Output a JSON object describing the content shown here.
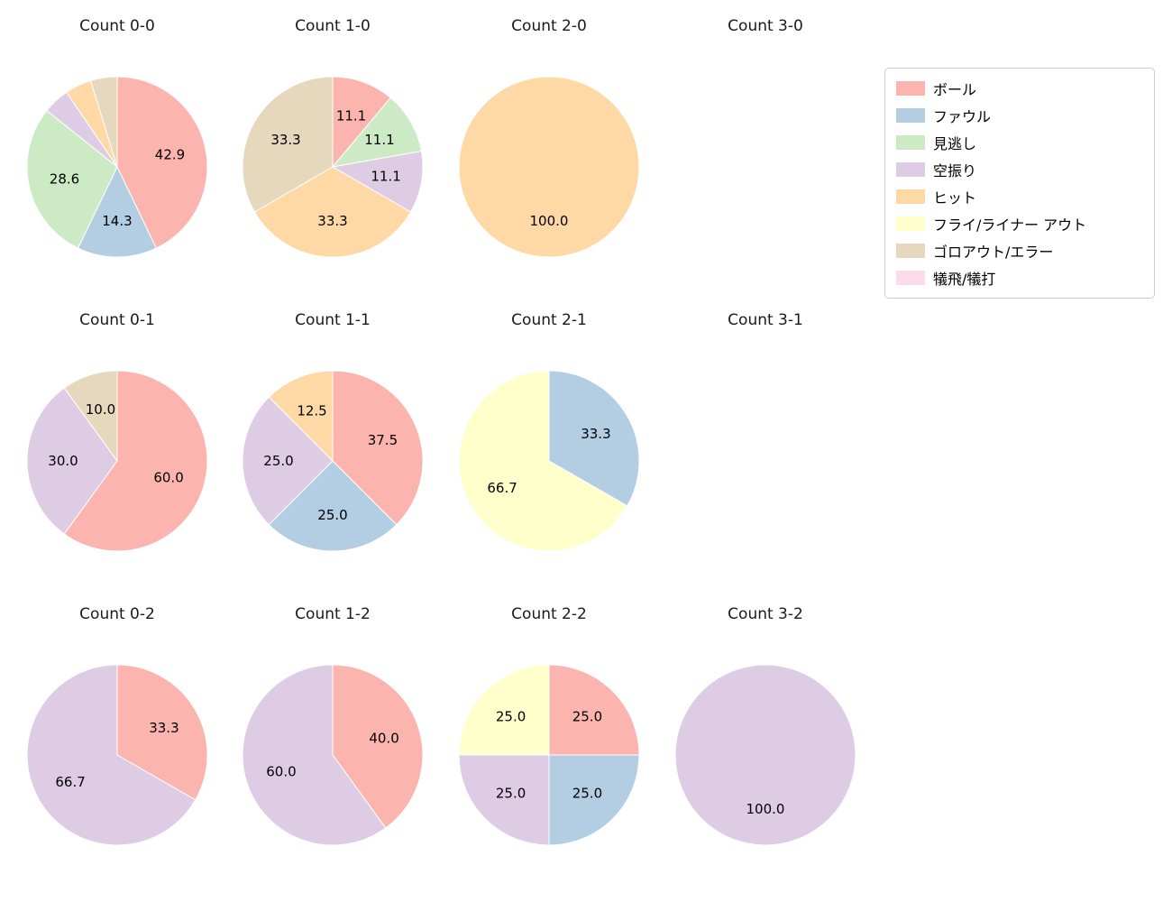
{
  "page": {
    "background": "#ffffff"
  },
  "legend": {
    "entries": [
      {
        "label": "ボール",
        "color": "#fbb4ae"
      },
      {
        "label": "ファウル",
        "color": "#b3cde3"
      },
      {
        "label": "見逃し",
        "color": "#ccebc5"
      },
      {
        "label": "空振り",
        "color": "#decbe4"
      },
      {
        "label": "ヒット",
        "color": "#fed9a6"
      },
      {
        "label": "フライ/ライナー アウト",
        "color": "#ffffcc"
      },
      {
        "label": "ゴロアウト/エラー",
        "color": "#e5d8bd"
      },
      {
        "label": "犠飛/犠打",
        "color": "#fddaec"
      }
    ]
  },
  "chart_data": [
    {
      "type": "pie",
      "title": "Count 0-0",
      "unit": "percent",
      "slices": [
        {
          "category": "ボール",
          "value": 42.9,
          "label": "42.9"
        },
        {
          "category": "ファウル",
          "value": 14.3,
          "label": "14.3"
        },
        {
          "category": "見逃し",
          "value": 28.6,
          "label": "28.6"
        },
        {
          "category": "空振り",
          "value": 4.76,
          "label": ""
        },
        {
          "category": "ヒット",
          "value": 4.76,
          "label": ""
        },
        {
          "category": "ゴロアウト/エラー",
          "value": 4.76,
          "label": ""
        }
      ]
    },
    {
      "type": "pie",
      "title": "Count 1-0",
      "unit": "percent",
      "slices": [
        {
          "category": "ボール",
          "value": 11.1,
          "label": "11.1"
        },
        {
          "category": "見逃し",
          "value": 11.1,
          "label": "11.1"
        },
        {
          "category": "空振り",
          "value": 11.1,
          "label": "11.1"
        },
        {
          "category": "ヒット",
          "value": 33.3,
          "label": "33.3"
        },
        {
          "category": "ゴロアウト/エラー",
          "value": 33.3,
          "label": "33.3"
        }
      ]
    },
    {
      "type": "pie",
      "title": "Count 2-0",
      "unit": "percent",
      "slices": [
        {
          "category": "ヒット",
          "value": 100.0,
          "label": "100.0"
        }
      ]
    },
    {
      "type": "pie",
      "title": "Count 3-0",
      "unit": "percent",
      "slices": []
    },
    {
      "type": "pie",
      "title": "Count 0-1",
      "unit": "percent",
      "slices": [
        {
          "category": "ボール",
          "value": 60.0,
          "label": "60.0"
        },
        {
          "category": "空振り",
          "value": 30.0,
          "label": "30.0"
        },
        {
          "category": "ゴロアウト/エラー",
          "value": 10.0,
          "label": "10.0"
        }
      ]
    },
    {
      "type": "pie",
      "title": "Count 1-1",
      "unit": "percent",
      "slices": [
        {
          "category": "ボール",
          "value": 37.5,
          "label": "37.5"
        },
        {
          "category": "ファウル",
          "value": 25.0,
          "label": "25.0"
        },
        {
          "category": "空振り",
          "value": 25.0,
          "label": "25.0"
        },
        {
          "category": "ヒット",
          "value": 12.5,
          "label": "12.5"
        }
      ]
    },
    {
      "type": "pie",
      "title": "Count 2-1",
      "unit": "percent",
      "slices": [
        {
          "category": "ファウル",
          "value": 33.3,
          "label": "33.3"
        },
        {
          "category": "フライ/ライナー アウト",
          "value": 66.7,
          "label": "66.7"
        }
      ]
    },
    {
      "type": "pie",
      "title": "Count 3-1",
      "unit": "percent",
      "slices": []
    },
    {
      "type": "pie",
      "title": "Count 0-2",
      "unit": "percent",
      "slices": [
        {
          "category": "ボール",
          "value": 33.3,
          "label": "33.3"
        },
        {
          "category": "空振り",
          "value": 66.7,
          "label": "66.7"
        }
      ]
    },
    {
      "type": "pie",
      "title": "Count 1-2",
      "unit": "percent",
      "slices": [
        {
          "category": "ボール",
          "value": 40.0,
          "label": "40.0"
        },
        {
          "category": "空振り",
          "value": 60.0,
          "label": "60.0"
        }
      ]
    },
    {
      "type": "pie",
      "title": "Count 2-2",
      "unit": "percent",
      "slices": [
        {
          "category": "ボール",
          "value": 25.0,
          "label": "25.0"
        },
        {
          "category": "ファウル",
          "value": 25.0,
          "label": "25.0"
        },
        {
          "category": "空振り",
          "value": 25.0,
          "label": "25.0"
        },
        {
          "category": "フライ/ライナー アウト",
          "value": 25.0,
          "label": "25.0"
        }
      ]
    },
    {
      "type": "pie",
      "title": "Count 3-2",
      "unit": "percent",
      "slices": [
        {
          "category": "空振り",
          "value": 100.0,
          "label": "100.0"
        }
      ]
    }
  ]
}
